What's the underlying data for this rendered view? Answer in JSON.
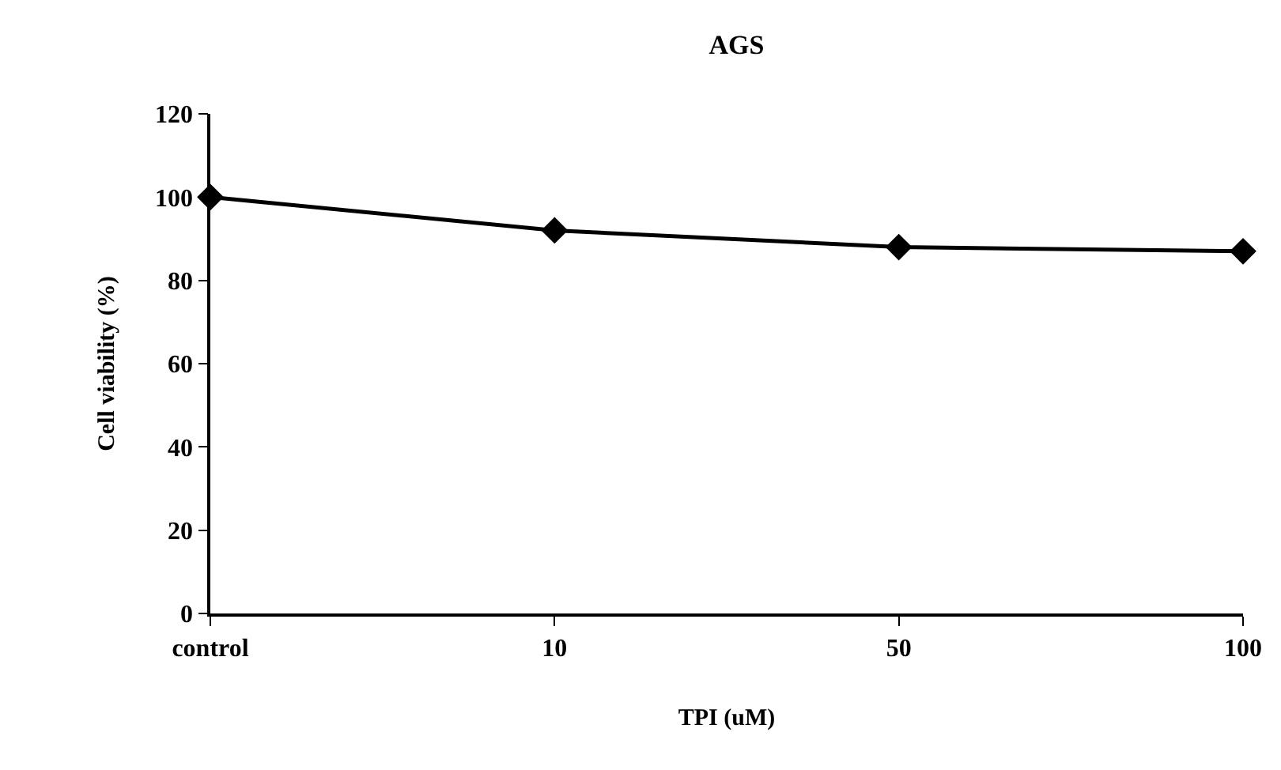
{
  "chart_data": {
    "type": "line",
    "title": "AGS",
    "xlabel": "TPI (uM)",
    "ylabel": "Cell viability (%)",
    "categories": [
      "control",
      "10",
      "50",
      "100"
    ],
    "series": [
      {
        "color": "#000000",
        "values": [
          100,
          92,
          88,
          87
        ]
      }
    ],
    "ylim": [
      0,
      120
    ],
    "yticks": [
      0,
      20,
      40,
      60,
      80,
      100,
      120
    ],
    "legend": false,
    "marker": "diamond",
    "line_style": "solid"
  }
}
